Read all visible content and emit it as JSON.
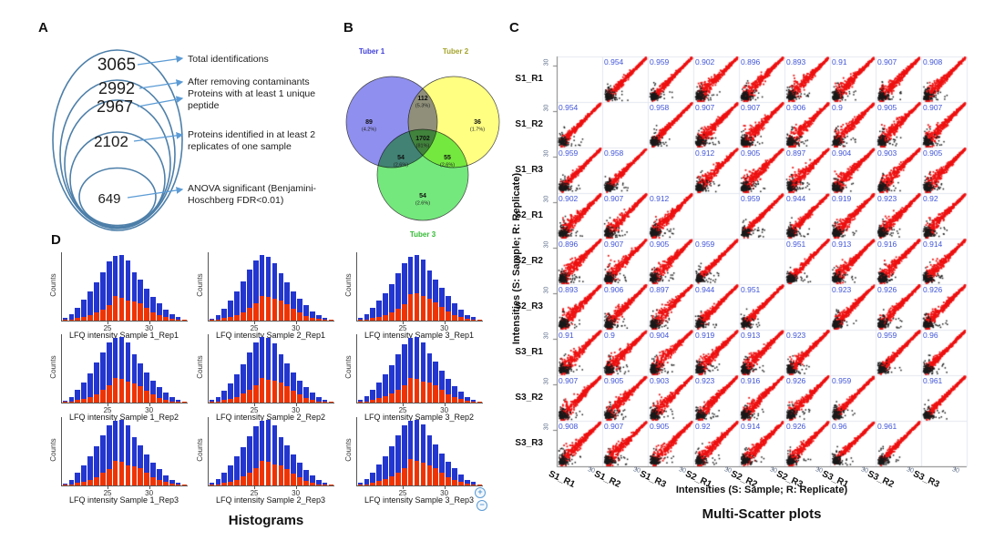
{
  "controls": {
    "zoom_in": "+",
    "zoom_out": "−"
  },
  "chart_data": [
    {
      "panel_letter": "A",
      "type": "funnel",
      "description": "Nested ellipse counts of protein identifications",
      "values": [
        3065,
        2992,
        2967,
        2102,
        649
      ],
      "labels": [
        "Total identifications",
        "After removing contaminants",
        "Proteins with at least 1 unique peptide",
        "Proteins identified in at least 2 replicates of one sample",
        "ANOVA significant (Benjamini-Hoschberg FDR<0.01)"
      ],
      "ellipse_color": "#4d7fa9",
      "arrow_color": "#5b9bd5"
    },
    {
      "panel_letter": "B",
      "type": "venn",
      "sets": [
        "Tuber 1",
        "Tuber 2",
        "Tuber 3"
      ],
      "set_label_colors": [
        "#3c3cd9",
        "#a3a32a",
        "#33bb33"
      ],
      "set_fill_colors": [
        "#8f8fef",
        "#ffff82",
        "#74e87c"
      ],
      "regions": [
        {
          "sets": "Tuber 1 only",
          "value": 89,
          "percent_label": "(4.2%)"
        },
        {
          "sets": "Tuber 1 ∩ Tuber 2",
          "value": 112,
          "percent_label": "(5.3%)"
        },
        {
          "sets": "Tuber 2 only",
          "value": 36,
          "percent_label": "(1.7%)"
        },
        {
          "sets": "Tuber 1 ∩ Tuber 3",
          "value": 54,
          "percent_label": "(2.6%)"
        },
        {
          "sets": "Tuber 1 ∩ Tuber 2 ∩ Tuber 3",
          "value": 1702,
          "percent_label": "(81%)"
        },
        {
          "sets": "Tuber 2 ∩ Tuber 3",
          "value": 55,
          "percent_label": "(2.6%)"
        },
        {
          "sets": "Tuber 3 only",
          "value": 54,
          "percent_label": "(2.6%)"
        }
      ]
    },
    {
      "panel_letter": "C",
      "type": "scatter-matrix",
      "title": "Multi-Scatter plots",
      "xlabel": "Intensities (S: Sample; R: Replicate)",
      "ylabel": "Intensities (S: Sample; R: Replicate)",
      "labels": [
        "S1_R1",
        "S1_R2",
        "S1_R3",
        "S2_R1",
        "S2_R2",
        "S2_R3",
        "S3_R1",
        "S3_R2",
        "S3_R3"
      ],
      "axis_tick_label": "30",
      "correlations": [
        [
          null,
          "0.954",
          "0.959",
          "0.902",
          "0.896",
          "0.893",
          "0.91",
          "0.907",
          "0.908"
        ],
        [
          "0.954",
          null,
          "0.958",
          "0.907",
          "0.907",
          "0.906",
          "0.9",
          "0.905",
          "0.907"
        ],
        [
          "0.959",
          "0.958",
          null,
          "0.912",
          "0.905",
          "0.897",
          "0.904",
          "0.903",
          "0.905"
        ],
        [
          "0.902",
          "0.907",
          "0.912",
          null,
          "0.959",
          "0.944",
          "0.919",
          "0.923",
          "0.92"
        ],
        [
          "0.896",
          "0.907",
          "0.905",
          "0.959",
          null,
          "0.951",
          "0.913",
          "0.916",
          "0.914"
        ],
        [
          "0.893",
          "0.906",
          "0.897",
          "0.944",
          "0.951",
          null,
          "0.923",
          "0.926",
          "0.926"
        ],
        [
          "0.91",
          "0.9",
          "0.904",
          "0.919",
          "0.913",
          "0.923",
          null,
          "0.959",
          "0.96"
        ],
        [
          "0.907",
          "0.905",
          "0.903",
          "0.923",
          "0.916",
          "0.926",
          "0.959",
          null,
          "0.961"
        ],
        [
          "0.908",
          "0.907",
          "0.905",
          "0.92",
          "0.914",
          "0.926",
          "0.96",
          "0.961",
          null
        ]
      ],
      "colors": {
        "points": "#ee1111",
        "outliers": "#1a1a1a",
        "corr_text": "#4055d8"
      }
    },
    {
      "panel_letter": "D",
      "type": "histogram-grid",
      "title": "Histograms",
      "ylabel": "Counts",
      "xtick_labels": [
        "25",
        "30"
      ],
      "colors": {
        "total": "#2336cf",
        "subset": "#ee3405"
      },
      "bar_units": "percent of tallest bar (y axis unlabeled)",
      "plots": [
        {
          "xlabel": "LFQ intensity Sample 1_Rep1",
          "total": [
            4,
            10,
            20,
            32,
            44,
            58,
            74,
            90,
            98,
            100,
            92,
            74,
            62,
            48,
            36,
            26,
            17,
            10,
            5,
            2
          ],
          "subset": [
            1,
            2,
            4,
            6,
            8,
            12,
            17,
            24,
            38,
            35,
            31,
            29,
            26,
            19,
            13,
            8,
            5,
            3,
            2,
            1
          ]
        },
        {
          "xlabel": "LFQ intensity Sample 2_Rep1",
          "total": [
            3,
            9,
            18,
            30,
            44,
            60,
            78,
            92,
            100,
            97,
            88,
            72,
            58,
            45,
            33,
            23,
            14,
            8,
            4,
            2
          ],
          "subset": [
            1,
            2,
            4,
            6,
            9,
            13,
            19,
            26,
            37,
            36,
            33,
            30,
            25,
            18,
            12,
            7,
            4,
            3,
            2,
            1
          ]
        },
        {
          "xlabel": "LFQ intensity Sample 3_Rep1",
          "total": [
            4,
            10,
            19,
            30,
            42,
            56,
            72,
            88,
            97,
            100,
            93,
            76,
            63,
            50,
            37,
            26,
            16,
            9,
            5,
            2
          ],
          "subset": [
            1,
            2,
            4,
            6,
            9,
            13,
            18,
            25,
            40,
            42,
            38,
            34,
            28,
            21,
            14,
            9,
            5,
            3,
            2,
            1
          ]
        },
        {
          "xlabel": "LFQ intensity Sample 1_Rep2",
          "total": [
            3,
            9,
            19,
            31,
            45,
            61,
            77,
            91,
            99,
            100,
            91,
            73,
            60,
            46,
            34,
            24,
            15,
            8,
            4,
            2
          ],
          "subset": [
            1,
            2,
            4,
            6,
            9,
            13,
            19,
            26,
            38,
            36,
            32,
            29,
            25,
            18,
            12,
            7,
            4,
            2,
            1,
            1
          ]
        },
        {
          "xlabel": "LFQ intensity Sample 2_Rep2",
          "total": [
            4,
            9,
            18,
            29,
            43,
            59,
            76,
            91,
            100,
            98,
            90,
            74,
            60,
            46,
            34,
            24,
            15,
            8,
            4,
            2
          ],
          "subset": [
            1,
            2,
            4,
            6,
            9,
            14,
            20,
            27,
            37,
            35,
            33,
            30,
            25,
            18,
            12,
            7,
            4,
            2,
            1,
            1
          ]
        },
        {
          "xlabel": "LFQ intensity Sample 3_Rep2",
          "total": [
            4,
            10,
            20,
            31,
            43,
            57,
            73,
            89,
            98,
            100,
            92,
            75,
            62,
            49,
            36,
            25,
            16,
            9,
            4,
            2
          ],
          "subset": [
            1,
            2,
            4,
            7,
            10,
            14,
            19,
            26,
            38,
            36,
            32,
            30,
            26,
            19,
            13,
            8,
            5,
            3,
            2,
            1
          ]
        },
        {
          "xlabel": "LFQ intensity Sample 1_Rep3",
          "total": [
            3,
            9,
            19,
            31,
            44,
            60,
            76,
            92,
            99,
            100,
            92,
            74,
            61,
            47,
            35,
            25,
            15,
            9,
            4,
            2
          ],
          "subset": [
            1,
            2,
            4,
            6,
            9,
            13,
            19,
            25,
            38,
            36,
            31,
            29,
            26,
            19,
            13,
            8,
            5,
            3,
            2,
            1
          ]
        },
        {
          "xlabel": "LFQ intensity Sample 2_Rep3",
          "total": [
            4,
            10,
            19,
            30,
            44,
            59,
            75,
            90,
            99,
            100,
            91,
            74,
            61,
            47,
            35,
            24,
            15,
            8,
            4,
            2
          ],
          "subset": [
            1,
            2,
            4,
            6,
            9,
            14,
            20,
            26,
            37,
            36,
            32,
            30,
            25,
            18,
            12,
            7,
            4,
            2,
            1,
            1
          ]
        },
        {
          "xlabel": "LFQ intensity Sample 3_Rep3",
          "total": [
            4,
            10,
            20,
            32,
            45,
            60,
            76,
            91,
            98,
            100,
            93,
            76,
            63,
            49,
            36,
            26,
            16,
            9,
            5,
            2
          ],
          "subset": [
            1,
            2,
            4,
            7,
            10,
            14,
            20,
            27,
            40,
            38,
            35,
            31,
            27,
            20,
            13,
            8,
            5,
            3,
            2,
            1
          ]
        }
      ]
    }
  ]
}
